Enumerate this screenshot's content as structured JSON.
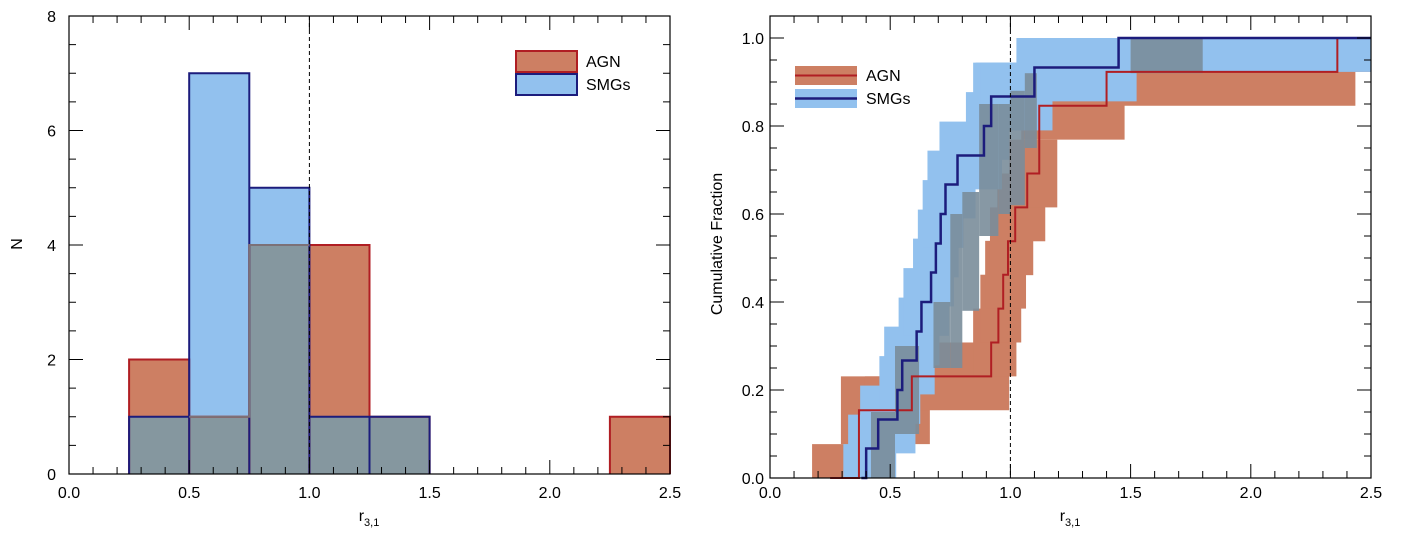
{
  "colors": {
    "agn_fill": "#cd7f63",
    "agn_edge": "#b01e23",
    "smg_fill": "#92c1ee",
    "smg_edge": "#1c1c7c",
    "overlap_fill": "#85979f",
    "overlap_edge": "#7c7177",
    "cdf_overlap": "#7a8d9a"
  },
  "chart_data": [
    {
      "type": "bar",
      "xlabel": "r",
      "xlabel_sub": "3,1",
      "ylabel": "N",
      "xlim": [
        0.0,
        2.5
      ],
      "ylim": [
        0,
        8
      ],
      "x_ticks": [
        "0.0",
        "0.5",
        "1.0",
        "1.5",
        "2.0",
        "2.5"
      ],
      "y_ticks": [
        "0",
        "2",
        "4",
        "6",
        "8"
      ],
      "reference_line_x": 1.0,
      "legend_position": "top-right",
      "bin_edges": [
        0.25,
        0.5,
        0.75,
        1.0,
        1.25,
        1.5,
        1.75,
        2.0,
        2.25,
        2.5
      ],
      "series": [
        {
          "name": "AGN",
          "values": [
            2,
            1,
            4,
            4,
            1,
            0,
            0,
            0,
            1
          ]
        },
        {
          "name": "SMGs",
          "values": [
            1,
            7,
            5,
            1,
            1,
            0,
            0,
            0,
            0
          ]
        }
      ]
    },
    {
      "type": "line",
      "xlabel": "r",
      "xlabel_sub": "3,1",
      "ylabel": "Cumulative Fraction",
      "xlim": [
        0.0,
        2.5
      ],
      "ylim": [
        0.0,
        1.05
      ],
      "x_ticks": [
        "0.0",
        "0.5",
        "1.0",
        "1.5",
        "2.0",
        "2.5"
      ],
      "y_ticks": [
        "0.0",
        "0.2",
        "0.4",
        "0.6",
        "0.8",
        "1.0"
      ],
      "reference_line_x": 1.0,
      "legend_position": "top-left",
      "series": [
        {
          "name": "AGN",
          "x": [
            0.25,
            0.37,
            0.47,
            0.59,
            0.92,
            0.95,
            0.97,
            0.99,
            1.02,
            1.07,
            1.12,
            1.4,
            2.36,
            2.5
          ],
          "y": [
            0.0,
            0.154,
            0.154,
            0.231,
            0.308,
            0.385,
            0.462,
            0.538,
            0.615,
            0.692,
            0.846,
            0.923,
            1.0,
            1.0
          ]
        },
        {
          "name": "SMGs",
          "x": [
            0.38,
            0.4,
            0.45,
            0.53,
            0.55,
            0.61,
            0.63,
            0.67,
            0.69,
            0.71,
            0.73,
            0.78,
            0.89,
            0.92,
            0.93,
            0.95,
            1.0,
            1.1,
            1.45,
            2.5
          ],
          "y": [
            0.0,
            0.067,
            0.133,
            0.2,
            0.267,
            0.333,
            0.4,
            0.467,
            0.533,
            0.6,
            0.667,
            0.733,
            0.8,
            0.867,
            0.867,
            0.867,
            0.867,
            0.933,
            1.0,
            1.0
          ]
        }
      ]
    }
  ]
}
